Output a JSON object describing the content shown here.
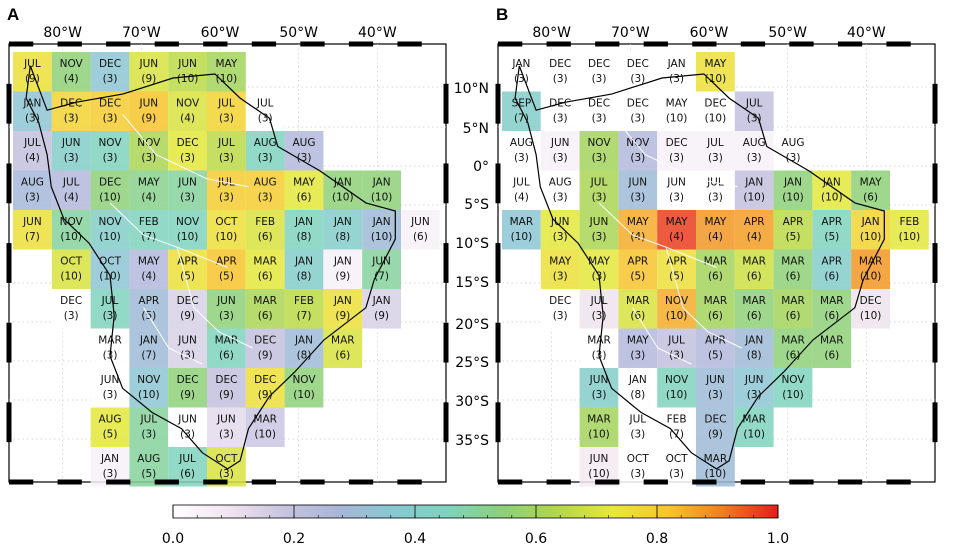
{
  "panels": [
    {
      "letter": "A",
      "lon_labels": [
        "80°W",
        "70°W",
        "60°W",
        "50°W",
        "40°W"
      ],
      "cells": [
        [
          "JUL",
          "9",
          0.75
        ],
        [
          "NOV",
          "4",
          0.55
        ],
        [
          "DEC",
          "3",
          0.35
        ],
        [
          "JUN",
          "9",
          0.7
        ],
        [
          "JUN",
          "10",
          0.65
        ],
        [
          "MAY",
          "10",
          0.6
        ],
        null,
        null,
        null,
        null,
        null,
        [
          "JAN",
          "3",
          0.35
        ],
        [
          "DEC",
          "3",
          0.78
        ],
        [
          "DEC",
          "3",
          0.8
        ],
        [
          "JUN",
          "9",
          0.82
        ],
        [
          "NOV",
          "4",
          0.7
        ],
        [
          "JUL",
          "3",
          0.78
        ],
        [
          "JUL",
          "3",
          0.0
        ],
        null,
        null,
        null,
        null,
        [
          "JUL",
          "4",
          0.2
        ],
        [
          "JUN",
          "3",
          0.4
        ],
        [
          "NOV",
          "3",
          0.45
        ],
        [
          "NOV",
          "3",
          0.62
        ],
        [
          "DEC",
          "3",
          0.72
        ],
        [
          "JUL",
          "3",
          0.65
        ],
        [
          "AUG",
          "3",
          0.45
        ],
        [
          "AUG",
          "3",
          0.25
        ],
        null,
        null,
        null,
        [
          "AUG",
          "3",
          0.28
        ],
        [
          "JUL",
          "4",
          0.25
        ],
        [
          "DEC",
          "10",
          0.55
        ],
        [
          "MAY",
          "4",
          0.52
        ],
        [
          "JUN",
          "3",
          0.5
        ],
        [
          "JUL",
          "3",
          0.8
        ],
        [
          "AUG",
          "3",
          0.8
        ],
        [
          "MAY",
          "6",
          0.72
        ],
        [
          "JAN",
          "10",
          0.55
        ],
        [
          "JAN",
          "10",
          0.55
        ],
        null,
        [
          "JUN",
          "7",
          0.75
        ],
        [
          "NOV",
          "10",
          0.5
        ],
        [
          "NOV",
          "10",
          0.4
        ],
        [
          "FEB",
          "7",
          0.45
        ],
        [
          "NOV",
          "10",
          0.45
        ],
        [
          "OCT",
          "10",
          0.75
        ],
        [
          "FEB",
          "6",
          0.7
        ],
        [
          "JAN",
          "8",
          0.45
        ],
        [
          "JAN",
          "8",
          0.4
        ],
        [
          "JAN",
          "10",
          0.3
        ],
        [
          "JUN",
          "6",
          0.05
        ],
        null,
        [
          "OCT",
          "10",
          0.7
        ],
        [
          "OCT",
          "10",
          0.35
        ],
        [
          "MAY",
          "4",
          0.25
        ],
        [
          "APR",
          "5",
          0.75
        ],
        [
          "APR",
          "5",
          0.82
        ],
        [
          "MAR",
          "6",
          0.72
        ],
        [
          "JAN",
          "8",
          0.4
        ],
        [
          "JAN",
          "9",
          0.05
        ],
        [
          "JUN",
          "7",
          0.5
        ],
        null,
        null,
        [
          "DEC",
          "3",
          0.0
        ],
        [
          "JUL",
          "3",
          0.45
        ],
        [
          "APR",
          "5",
          0.3
        ],
        [
          "DEC",
          "9",
          0.15
        ],
        [
          "JUN",
          "3",
          0.55
        ],
        [
          "MAR",
          "6",
          0.62
        ],
        [
          "FEB",
          "7",
          0.65
        ],
        [
          "JAN",
          "9",
          0.75
        ],
        [
          "JAN",
          "9",
          0.15
        ],
        null,
        null,
        null,
        [
          "MAR",
          "3",
          0.0
        ],
        [
          "JAN",
          "7",
          0.3
        ],
        [
          "JUN",
          "3",
          0.15
        ],
        [
          "MAR",
          "6",
          0.45
        ],
        [
          "DEC",
          "9",
          0.2
        ],
        [
          "JAN",
          "8",
          0.3
        ],
        [
          "MAR",
          "6",
          0.7
        ],
        null,
        null,
        null,
        null,
        [
          "JUN",
          "3",
          0.0
        ],
        [
          "NOV",
          "10",
          0.35
        ],
        [
          "DEC",
          "9",
          0.55
        ],
        [
          "DEC",
          "9",
          0.2
        ],
        [
          "DEC",
          "9",
          0.75
        ],
        [
          "NOV",
          "10",
          0.55
        ],
        null,
        null,
        null,
        null,
        null,
        [
          "AUG",
          "5",
          0.72
        ],
        [
          "JUL",
          "3",
          0.5
        ],
        [
          "JUN",
          "3",
          0.0
        ],
        [
          "JUN",
          "3",
          0.12
        ],
        [
          "MAR",
          "10",
          0.18
        ],
        null,
        null,
        null,
        null,
        null,
        null,
        [
          "JAN",
          "3",
          0.05
        ],
        [
          "AUG",
          "5",
          0.5
        ],
        [
          "JUL",
          "6",
          0.45
        ],
        [
          "OCT",
          "3",
          0.7
        ],
        null,
        null,
        null,
        null,
        null
      ]
    },
    {
      "letter": "B",
      "lon_labels": [
        "80°W",
        "70°W",
        "60°W",
        "50°W",
        "40°W"
      ],
      "cells": [
        [
          "JAN",
          "3",
          0.0
        ],
        [
          "DEC",
          "3",
          0.0
        ],
        [
          "DEC",
          "3",
          0.0
        ],
        [
          "DEC",
          "3",
          0.0
        ],
        [
          "JAN",
          "3",
          0.0
        ],
        [
          "MAY",
          "10",
          0.75
        ],
        null,
        null,
        null,
        null,
        null,
        [
          "SEP",
          "7",
          0.4
        ],
        [
          "DEC",
          "3",
          0.0
        ],
        [
          "DEC",
          "3",
          0.0
        ],
        [
          "DEC",
          "3",
          0.0
        ],
        [
          "MAY",
          "10",
          0.0
        ],
        [
          "DEC",
          "10",
          0.0
        ],
        [
          "JUL",
          "3",
          0.2
        ],
        null,
        null,
        null,
        null,
        [
          "AUG",
          "3",
          0.0
        ],
        [
          "JUN",
          "3",
          0.05
        ],
        [
          "NOV",
          "3",
          0.6
        ],
        [
          "NOV",
          "3",
          0.25
        ],
        [
          "DEC",
          "3",
          0.05
        ],
        [
          "JUL",
          "3",
          0.05
        ],
        [
          "AUG",
          "3",
          0.05
        ],
        [
          "AUG",
          "3",
          0.0
        ],
        null,
        null,
        null,
        [
          "JUL",
          "4",
          0.0
        ],
        [
          "AUG",
          "3",
          0.0
        ],
        [
          "JUL",
          "3",
          0.62
        ],
        [
          "JUN",
          "3",
          0.3
        ],
        [
          "JUN",
          "3",
          0.0
        ],
        [
          "JUL",
          "3",
          0.0
        ],
        [
          "JAN",
          "10",
          0.2
        ],
        [
          "JAN",
          "10",
          0.55
        ],
        [
          "JAN",
          "10",
          0.72
        ],
        [
          "MAY",
          "6",
          0.55
        ],
        null,
        [
          "MAR",
          "10",
          0.35
        ],
        [
          "JUN",
          "3",
          0.72
        ],
        [
          "JUN",
          "3",
          0.62
        ],
        [
          "MAY",
          "4",
          0.85
        ],
        [
          "MAY",
          "4",
          0.97
        ],
        [
          "MAY",
          "4",
          0.88
        ],
        [
          "APR",
          "4",
          0.87
        ],
        [
          "APR",
          "5",
          0.65
        ],
        [
          "APR",
          "5",
          0.45
        ],
        [
          "JAN",
          "10",
          0.78
        ],
        [
          "FEB",
          "10",
          0.72
        ],
        null,
        [
          "MAY",
          "3",
          0.75
        ],
        [
          "MAY",
          "3",
          0.72
        ],
        [
          "APR",
          "5",
          0.82
        ],
        [
          "APR",
          "5",
          0.75
        ],
        [
          "MAR",
          "6",
          0.6
        ],
        [
          "MAR",
          "6",
          0.68
        ],
        [
          "MAR",
          "6",
          0.55
        ],
        [
          "APR",
          "6",
          0.4
        ],
        [
          "MAR",
          "10",
          0.88
        ],
        null,
        null,
        [
          "DEC",
          "3",
          0.0
        ],
        [
          "JUL",
          "3",
          0.1
        ],
        [
          "MAR",
          "6",
          0.7
        ],
        [
          "NOV",
          "10",
          0.85
        ],
        [
          "MAR",
          "6",
          0.6
        ],
        [
          "MAR",
          "6",
          0.55
        ],
        [
          "MAR",
          "6",
          0.6
        ],
        [
          "MAR",
          "6",
          0.55
        ],
        [
          "DEC",
          "10",
          0.1
        ],
        null,
        null,
        null,
        [
          "MAR",
          "3",
          0.0
        ],
        [
          "MAY",
          "3",
          0.25
        ],
        [
          "JUL",
          "3",
          0.2
        ],
        [
          "APR",
          "5",
          0.25
        ],
        [
          "JAN",
          "8",
          0.3
        ],
        [
          "MAR",
          "6",
          0.55
        ],
        [
          "MAR",
          "6",
          0.55
        ],
        null,
        null,
        null,
        null,
        [
          "JUN",
          "3",
          0.4
        ],
        [
          "JAN",
          "8",
          0.0
        ],
        [
          "NOV",
          "10",
          0.45
        ],
        [
          "JUN",
          "3",
          0.3
        ],
        [
          "JUN",
          "3",
          0.35
        ],
        [
          "NOV",
          "10",
          0.45
        ],
        null,
        null,
        null,
        null,
        null,
        [
          "MAR",
          "10",
          0.6
        ],
        [
          "JUL",
          "3",
          0.0
        ],
        [
          "FEB",
          "7",
          0.0
        ],
        [
          "DEC",
          "9",
          0.3
        ],
        [
          "MAR",
          "10",
          0.45
        ],
        null,
        null,
        null,
        null,
        null,
        null,
        [
          "JUN",
          "10",
          0.08
        ],
        [
          "OCT",
          "3",
          0.0
        ],
        [
          "OCT",
          "3",
          0.0
        ],
        [
          "MAR",
          "10",
          0.3
        ],
        null,
        null,
        null,
        null,
        null
      ]
    }
  ],
  "lat_labels": [
    "10°N",
    "5°N",
    "0°",
    "5°S",
    "10°S",
    "15°S",
    "20°S",
    "25°S",
    "30°S",
    "35°S"
  ],
  "colorbar": {
    "ticks": [
      "0.0",
      "0.2",
      "0.4",
      "0.6",
      "0.8",
      "1.0"
    ],
    "stops": [
      "#ffffff",
      "#f1e6f0",
      "#c9c4e0",
      "#a9b5d8",
      "#88c8d2",
      "#7fd3bd",
      "#8cd07a",
      "#b3d64a",
      "#e8e83a",
      "#f7c52d",
      "#f07e1e",
      "#e51d1d"
    ]
  }
}
